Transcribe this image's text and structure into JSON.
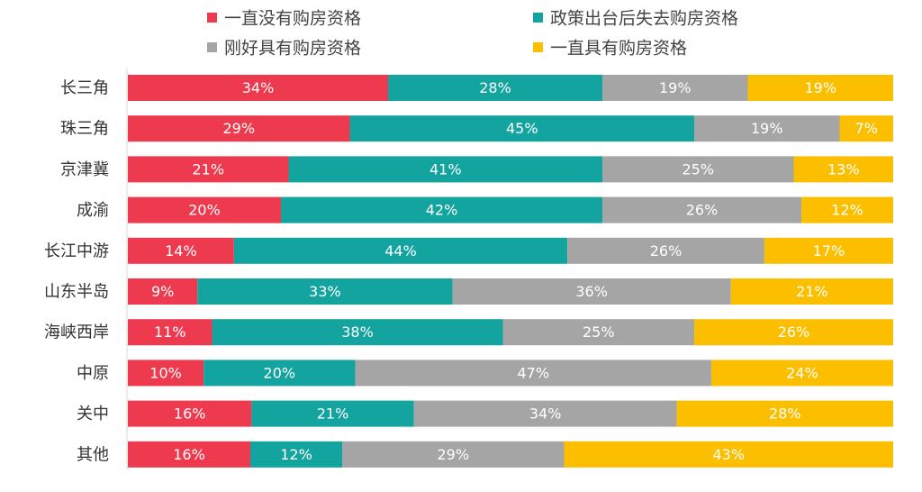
{
  "chart_data": {
    "type": "bar",
    "orientation": "horizontal",
    "stacked": true,
    "percent": true,
    "legend_position": "top",
    "grid": false,
    "title": "",
    "xlabel": "",
    "ylabel": "",
    "xlim": [
      0,
      100
    ],
    "categories": [
      "长三角",
      "珠三角",
      "京津冀",
      "成渝",
      "长江中游",
      "山东半岛",
      "海峡西岸",
      "中原",
      "关中",
      "其他"
    ],
    "series": [
      {
        "name": "一直没有购房资格",
        "color": "#ee3a4e",
        "values": [
          34,
          29,
          21,
          20,
          14,
          9,
          11,
          10,
          16,
          16
        ]
      },
      {
        "name": "政策出台后失去购房资格",
        "color": "#13a4a0",
        "values": [
          28,
          45,
          41,
          42,
          44,
          33,
          38,
          20,
          21,
          12
        ]
      },
      {
        "name": "刚好具有购房资格",
        "color": "#a5a5a5",
        "values": [
          19,
          19,
          25,
          26,
          26,
          36,
          25,
          47,
          34,
          29
        ]
      },
      {
        "name": "一直具有购房资格",
        "color": "#fcbf00",
        "values": [
          19,
          7,
          13,
          12,
          17,
          21,
          26,
          24,
          28,
          43
        ]
      }
    ],
    "value_suffix": "%"
  }
}
